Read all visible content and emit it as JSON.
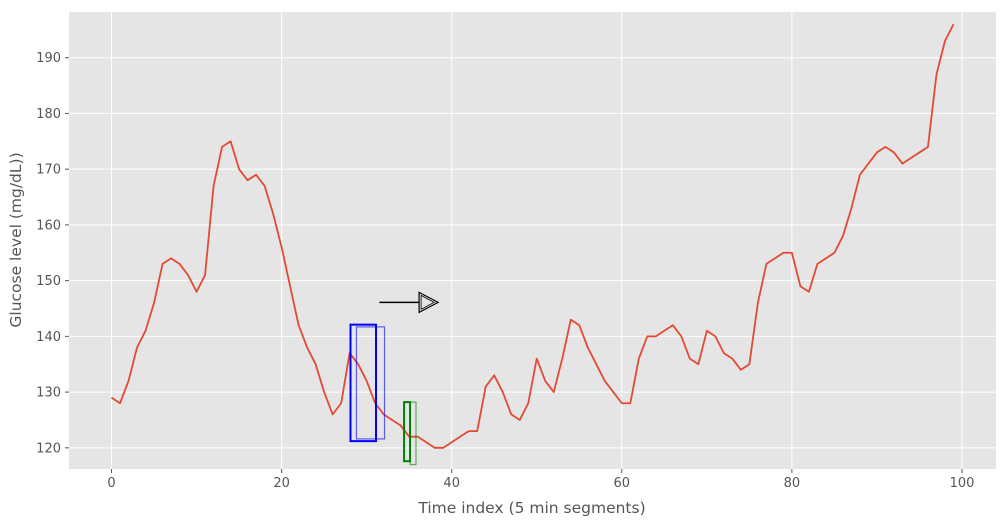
{
  "chart_data": {
    "type": "line",
    "title": "",
    "xlabel": "Time index (5 min segments)",
    "ylabel": "Glucose level (mg/dL))",
    "xlim": [
      -5,
      104
    ],
    "ylim": [
      116.2,
      198.2
    ],
    "xticks": [
      0,
      20,
      40,
      60,
      80,
      100
    ],
    "yticks": [
      120,
      130,
      140,
      150,
      160,
      170,
      180,
      190
    ],
    "grid": true,
    "style": "ggplot",
    "colors": {
      "background": "#E5E5E5",
      "grid": "#FFFFFF",
      "line": "#E24A33",
      "annotation_blue": "#0000FF",
      "annotation_green": "#008000",
      "arrow": "#000000"
    },
    "series": [
      {
        "x": [
          0,
          1,
          2,
          3,
          4,
          5,
          6,
          7,
          8,
          9,
          10,
          11,
          12,
          13,
          14,
          15,
          16,
          17,
          18,
          19,
          20,
          21,
          22,
          23,
          24,
          25,
          26,
          27,
          28,
          29,
          30,
          31,
          32,
          33,
          34,
          35,
          36,
          37,
          38,
          39,
          40,
          41,
          42,
          43,
          44,
          45,
          46,
          47,
          48,
          49,
          50,
          51,
          52,
          53,
          54,
          55,
          56,
          57,
          58,
          59,
          60,
          61,
          62,
          63,
          64,
          65,
          66,
          67,
          68,
          69,
          70,
          71,
          72,
          73,
          74,
          75,
          76,
          77,
          78,
          79,
          80,
          81,
          82,
          83,
          84,
          85,
          86,
          87,
          88,
          89,
          90,
          91,
          92,
          93,
          94,
          95,
          96,
          97,
          98,
          99
        ],
        "values": [
          129,
          128,
          132,
          138,
          141,
          146,
          153,
          154,
          153,
          151,
          148,
          151,
          167,
          174,
          175,
          170,
          168,
          169,
          167,
          162,
          156,
          149,
          142,
          138,
          135,
          130,
          126,
          128,
          137,
          135,
          132,
          128,
          126,
          125,
          124,
          122,
          122,
          121,
          120,
          120,
          121,
          122,
          123,
          123,
          131,
          133,
          130,
          126,
          125,
          128,
          136,
          132,
          130,
          136,
          143,
          142,
          138,
          135,
          132,
          130,
          128,
          128,
          136,
          140,
          140,
          141,
          142,
          140,
          136,
          135,
          141,
          140,
          137,
          136,
          134,
          135,
          146,
          153,
          154,
          155,
          155,
          149,
          148,
          153,
          154,
          155,
          158,
          163,
          169,
          171,
          173,
          174,
          173,
          171,
          172,
          173,
          174,
          187,
          193,
          196
        ]
      }
    ],
    "annotations": [
      {
        "type": "rectangle",
        "color": "#0000FF",
        "x": [
          28.1,
          31.1
        ],
        "y": [
          121.2,
          142.1
        ],
        "weight": "bold"
      },
      {
        "type": "rectangle",
        "color": "#0000FF",
        "x": [
          28.8,
          32.1
        ],
        "y": [
          121.6,
          141.7
        ],
        "weight": "faded"
      },
      {
        "type": "rectangle",
        "color": "#008000",
        "x": [
          34.4,
          35.1
        ],
        "y": [
          117.6,
          128.2
        ],
        "weight": "bold"
      },
      {
        "type": "rectangle",
        "color": "#008000",
        "x": [
          35.1,
          35.8
        ],
        "y": [
          117.0,
          128.2
        ],
        "weight": "faded"
      },
      {
        "type": "arrow",
        "color": "#000000",
        "x": [
          31.5,
          38.4
        ],
        "y": [
          146.1,
          146.1
        ]
      }
    ]
  }
}
